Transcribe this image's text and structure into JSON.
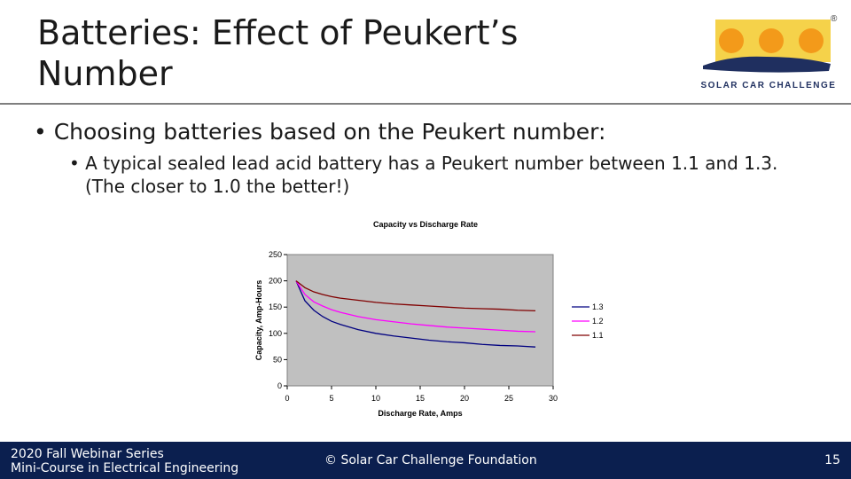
{
  "header": {
    "title": "Batteries: Effect of Peukert’s Number",
    "logo_mark": "®",
    "logo_text": "SOLAR CAR CHALLENGE"
  },
  "bullets": {
    "main": "Choosing batteries based on the Peukert number:",
    "sub": "A typical sealed lead acid battery has a Peukert number between 1.1 and 1.3. (The closer to 1.0 the better!)"
  },
  "chart_data": {
    "type": "line",
    "title": "Capacity vs Discharge Rate",
    "x_label": "Discharge Rate, Amps",
    "y_label": "Capacity, Amp-Hours",
    "x": [
      1,
      2,
      3,
      4,
      5,
      6,
      8,
      10,
      12,
      14,
      16,
      18,
      20,
      22,
      24,
      26,
      28
    ],
    "series": [
      {
        "name": "1.3",
        "color": "#000080",
        "values": [
          200,
          162,
          144,
          132,
          123,
          117,
          107,
          100,
          95,
          91,
          87,
          84,
          82,
          79,
          77,
          76,
          74
        ]
      },
      {
        "name": "1.2",
        "color": "#ff00ff",
        "values": [
          200,
          174,
          160,
          152,
          145,
          140,
          132,
          126,
          122,
          118,
          115,
          112,
          110,
          108,
          106,
          104,
          103
        ]
      },
      {
        "name": "1.1",
        "color": "#800000",
        "values": [
          200,
          187,
          179,
          174,
          170,
          167,
          163,
          159,
          156,
          154,
          152,
          150,
          148,
          147,
          146,
          144,
          143
        ]
      }
    ],
    "xlim": [
      0,
      30
    ],
    "xticks": [
      0,
      5,
      10,
      15,
      20,
      25,
      30
    ],
    "ylim": [
      0,
      250
    ],
    "yticks": [
      0,
      50,
      100,
      150,
      200,
      250
    ],
    "plot_background": "#c0c0c0",
    "legend": "right"
  },
  "footer": {
    "series": "2020 Fall Webinar Series",
    "course": "Mini-Course in Electrical Engineering",
    "org": "© Solar Car Challenge Foundation",
    "page": "15"
  }
}
